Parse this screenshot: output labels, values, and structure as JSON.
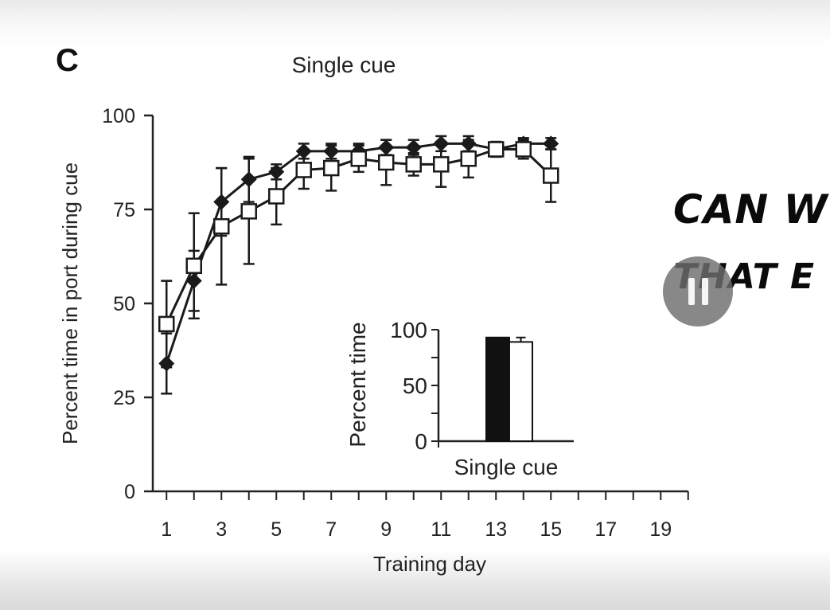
{
  "figure": {
    "panel_label": "C",
    "overlay": {
      "line1": "Can w",
      "line2": "that e"
    },
    "pause_icon": "pause-icon"
  },
  "chart_data": [
    {
      "type": "line",
      "title": "Single cue",
      "xlabel": "Training day",
      "ylabel": "Percent time in port during cue",
      "xlim": [
        0.5,
        20
      ],
      "ylim": [
        0,
        100
      ],
      "xticks": [
        1,
        3,
        5,
        7,
        9,
        11,
        13,
        15,
        17,
        19
      ],
      "yticks": [
        0,
        25,
        50,
        75,
        100
      ],
      "series": [
        {
          "marker": "filled-diamond",
          "color": "#1a1a1a",
          "x": [
            1,
            2,
            3,
            4,
            5,
            6,
            7,
            8,
            9,
            10,
            11,
            12,
            13,
            14,
            15
          ],
          "values": [
            34,
            56,
            77,
            83,
            85,
            90.5,
            90.5,
            90.5,
            91.5,
            91.5,
            92.5,
            92.5,
            91,
            92.5,
            92.5
          ],
          "error": [
            8,
            8,
            9,
            6,
            2,
            2,
            2,
            2,
            2,
            2,
            2,
            2,
            1.5,
            1.5,
            1.5
          ]
        },
        {
          "marker": "open-square",
          "color": "#1a1a1a",
          "x": [
            1,
            2,
            3,
            4,
            5,
            6,
            7,
            8,
            9,
            10,
            11,
            12,
            13,
            14,
            15
          ],
          "values": [
            44.5,
            60,
            70.5,
            74.5,
            78.5,
            85.5,
            86,
            88.5,
            87.5,
            87,
            87,
            88.5,
            91,
            91,
            84
          ],
          "error": [
            11.5,
            14,
            15.5,
            14,
            7.5,
            5,
            6,
            3.5,
            6,
            3,
            6,
            5,
            2,
            2.5,
            7
          ]
        }
      ]
    },
    {
      "type": "bar",
      "title": "",
      "xlabel": "Single cue",
      "ylabel": "Percent time",
      "ylim": [
        0,
        100
      ],
      "yticks": [
        0,
        50,
        100
      ],
      "series": [
        {
          "fill": "#111111",
          "values": [
            93
          ]
        },
        {
          "fill": "#ffffff",
          "values": [
            89
          ],
          "error": [
            4
          ]
        }
      ]
    }
  ]
}
